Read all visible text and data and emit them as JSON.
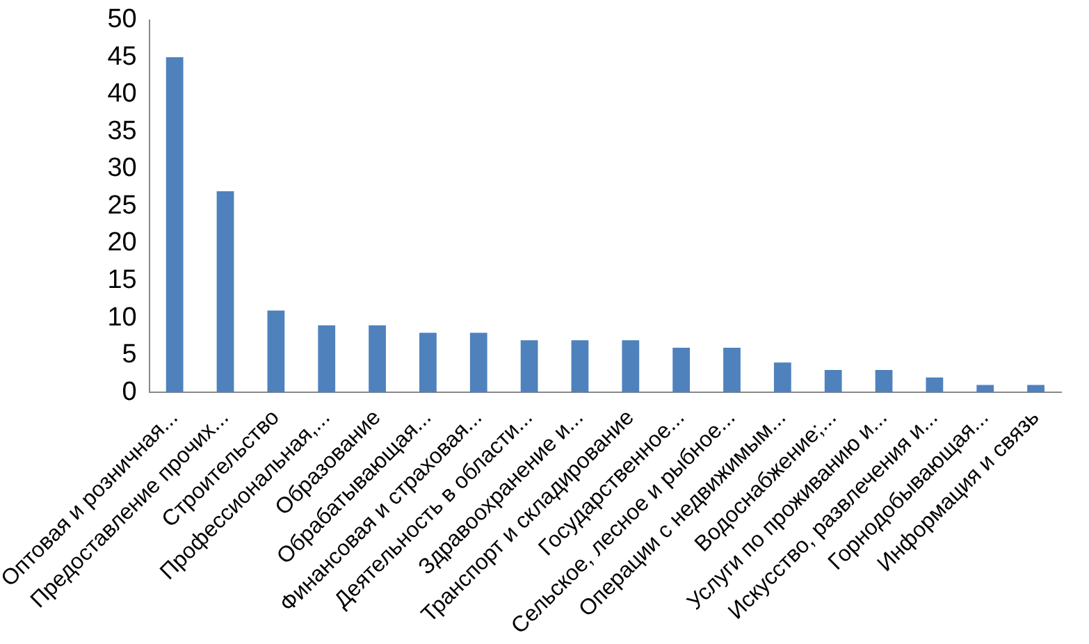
{
  "chart_data": {
    "type": "bar",
    "categories": [
      "Оптовая и розничная...",
      "Предоставление прочих...",
      "Строительство",
      "Профессиональная,...",
      "Образование",
      "Обрабатывающая...",
      "Финансовая и страховая...",
      "Деятельность в области...",
      "Здравоохранение и...",
      "Транспорт и складирование",
      "Государственное...",
      "Сельское, лесное и рыбное...",
      "Операции с недвижимым...",
      "Водоснабжение;...",
      "Услуги по проживанию и...",
      "Искусство, развлечения и...",
      "Горнодобывающая...",
      "Информация и связь"
    ],
    "values": [
      45,
      27,
      11,
      9,
      9,
      8,
      8,
      7,
      7,
      7,
      6,
      6,
      4,
      3,
      3,
      2,
      1,
      1
    ],
    "color": "#4f81bd",
    "ylim": [
      0,
      50
    ],
    "yticks": [
      0,
      5,
      10,
      15,
      20,
      25,
      30,
      35,
      40,
      45,
      50
    ],
    "grid": false,
    "legend": false
  }
}
